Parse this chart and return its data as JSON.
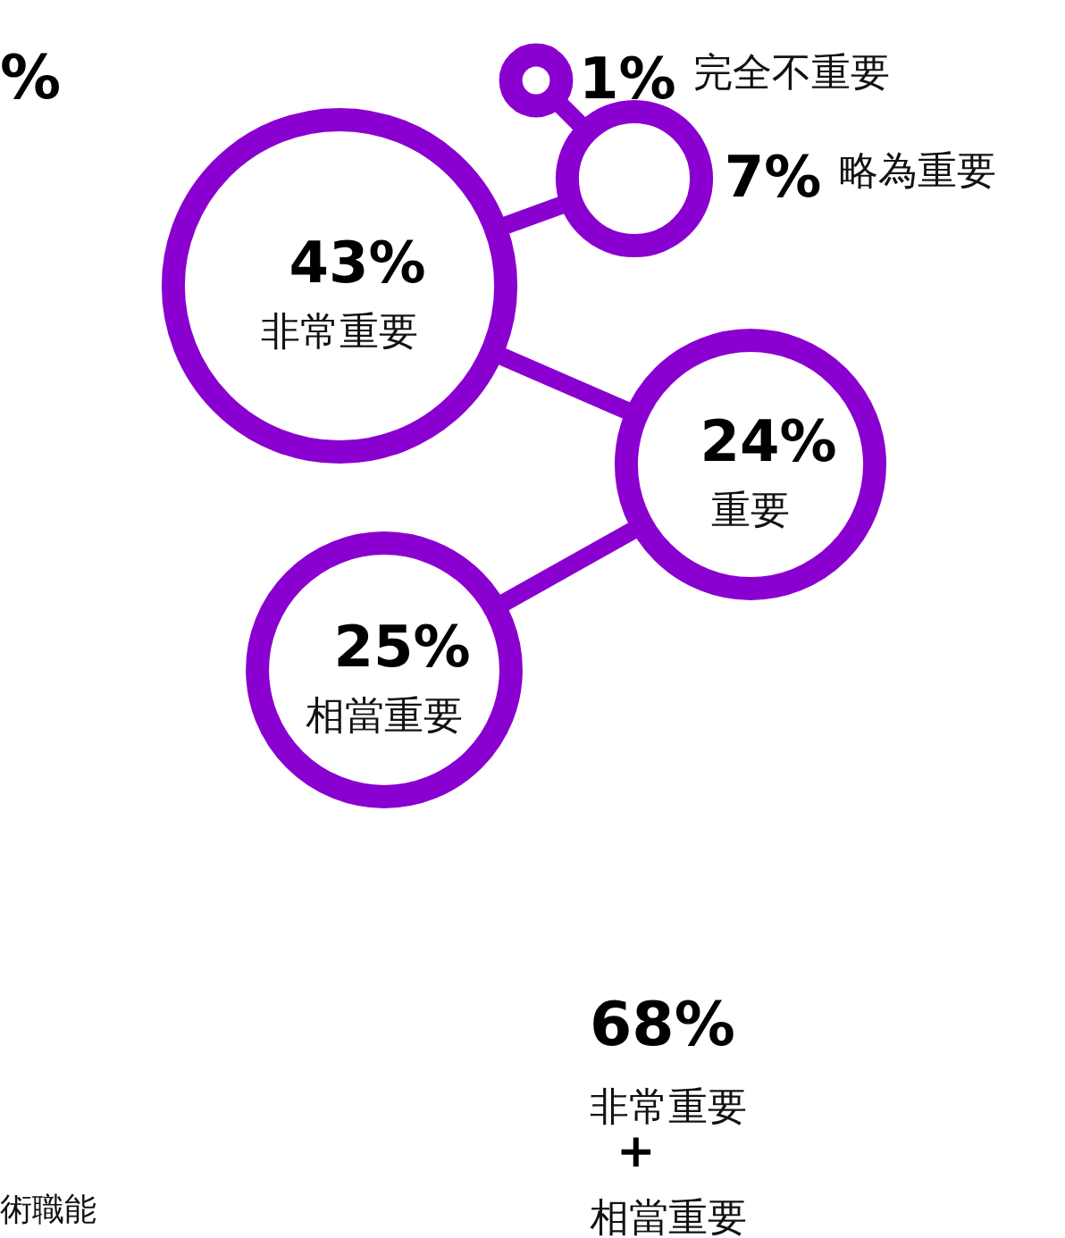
{
  "chart_data": {
    "type": "other",
    "categories": [
      "完全不重要",
      "略為重要",
      "非常重要",
      "重要",
      "相當重要"
    ],
    "values": [
      1,
      7,
      43,
      24,
      25
    ],
    "value_labels": [
      "1%",
      "7%",
      "43%",
      "24%",
      "25%"
    ],
    "colors": [
      "#8a00d0",
      "#8a00d0",
      "#8a00d0",
      "#8a00d0",
      "#8a00d0"
    ],
    "annotations": [
      "%",
      "68%",
      "非常重要",
      "+",
      "相當重要",
      "術職能"
    ]
  }
}
